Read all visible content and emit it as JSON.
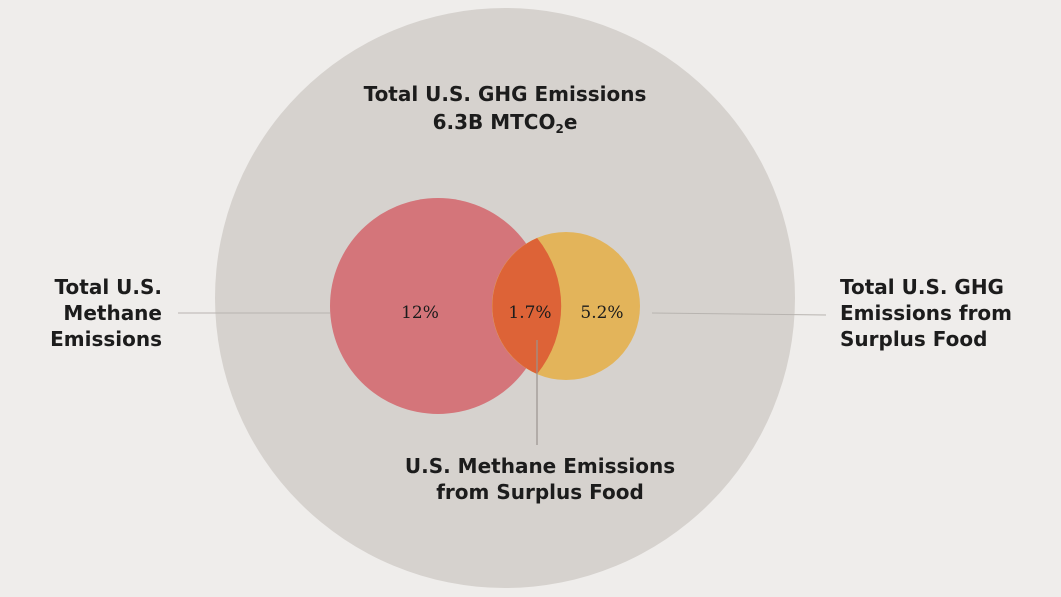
{
  "title": {
    "line1": "Total U.S. GHG Emissions",
    "line2_prefix": "6.3B MTCO",
    "line2_sub": "2",
    "line2_suffix": "e"
  },
  "labels": {
    "methane_total": [
      "Total U.S.",
      "Methane",
      "Emissions"
    ],
    "ghg_surplus_food": [
      "Total U.S. GHG",
      "Emissions from",
      "Surplus Food"
    ],
    "methane_surplus_food": [
      "U.S. Methane Emissions",
      "from Surplus Food"
    ]
  },
  "values": {
    "methane_share": "12%",
    "overlap_share": "1.7%",
    "surplus_food_share": "5.2%"
  },
  "colors": {
    "background": "#efedeb",
    "outer_circle": "#d6d2ce",
    "methane_circle": "#d4757a",
    "surplus_food_circle": "#e3b45a",
    "overlap": "#dd6337",
    "leader_lines": "#b8b4b0"
  }
}
